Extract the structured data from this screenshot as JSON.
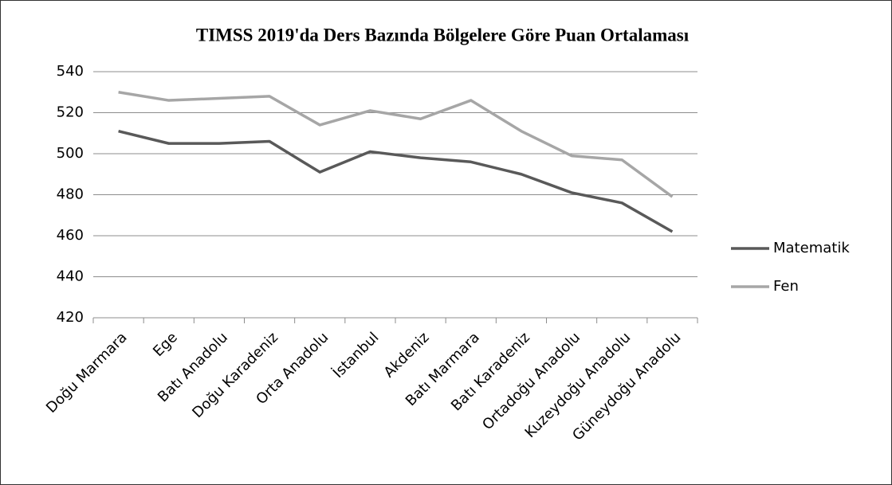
{
  "chart_data": {
    "type": "line",
    "title": "TIMSS 2019'da Ders Bazında Bölgelere Göre Puan Ortalaması",
    "categories": [
      "Doğu Marmara",
      "Ege",
      "Batı Anadolu",
      "Doğu Karadeniz",
      "Orta Anadolu",
      "İstanbul",
      "Akdeniz",
      "Batı Marmara",
      "Batı Karadeniz",
      "Ortadoğu Anadolu",
      "Kuzeydoğu Anadolu",
      "Güneydoğu Anadolu"
    ],
    "series": [
      {
        "name": "Matematik",
        "color": "#595959",
        "values": [
          511,
          505,
          505,
          506,
          491,
          501,
          498,
          496,
          490,
          481,
          476,
          462
        ]
      },
      {
        "name": "Fen",
        "color": "#a6a6a6",
        "values": [
          530,
          526,
          527,
          528,
          514,
          521,
          517,
          526,
          511,
          499,
          497,
          479
        ]
      }
    ],
    "ylim": [
      420,
      540
    ],
    "yticks": [
      420,
      440,
      460,
      480,
      500,
      520,
      540
    ],
    "grid": true,
    "legend": "right"
  }
}
